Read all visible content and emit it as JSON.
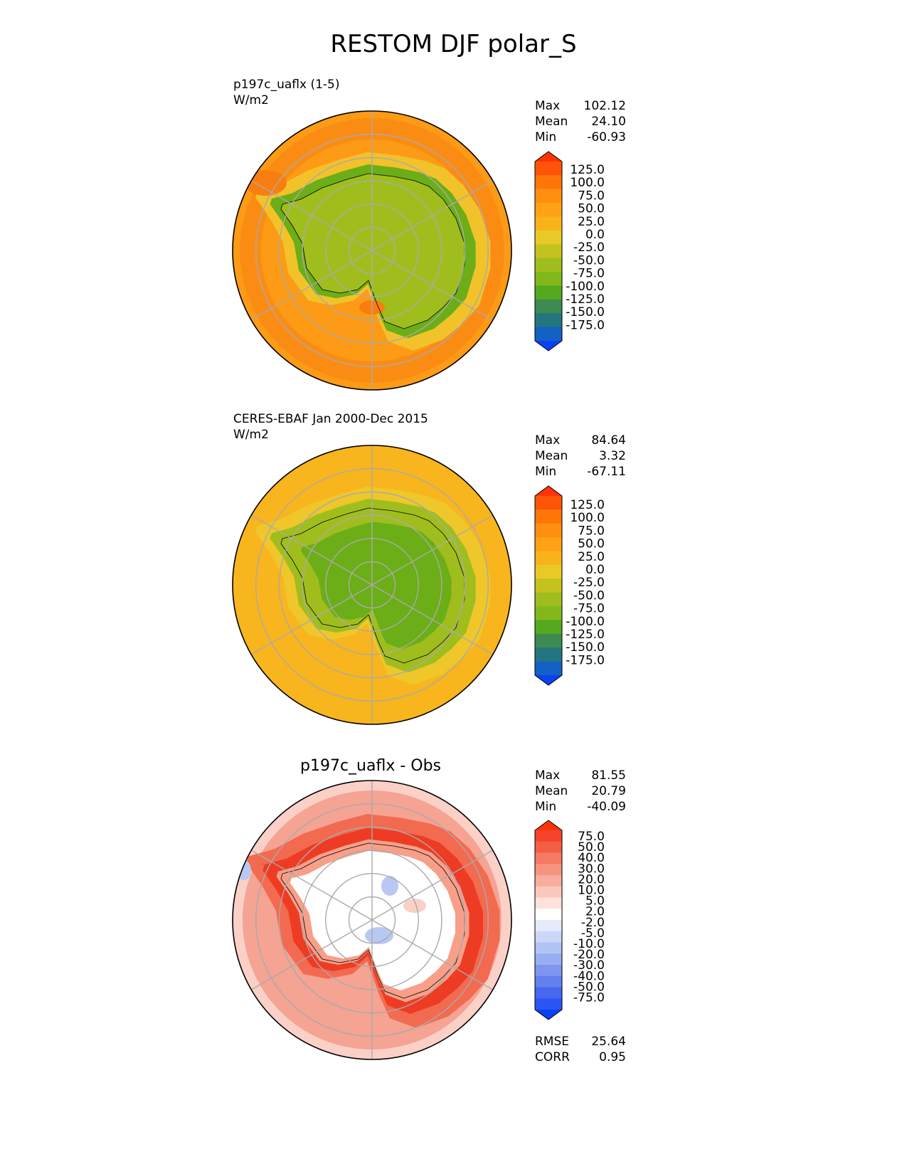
{
  "page_title": "RESTOM DJF polar_S",
  "colors": {
    "ocean_main": "#fd9b16",
    "ocean_main2": "#fa8c14",
    "land_main": "#9fbe1d",
    "land_main2": "#6bae17",
    "obs_ocean": "#f9b51d",
    "obs_ocean2": "#efc72a",
    "diff_bg": "#f5a393",
    "diff_strong": "#ee3b23",
    "diff_white": "#ffffff",
    "diff_blue": "#b8c8f3",
    "grid": "#aaaaaa",
    "coast": "#000000"
  },
  "panels": [
    {
      "title_lines": [
        "p197c_uaflx (1-5)",
        "W/m2"
      ],
      "stats": [
        {
          "label": "Max",
          "value": "102.12"
        },
        {
          "label": "Mean",
          "value": "24.10"
        },
        {
          "label": "Min",
          "value": "-60.93"
        }
      ]
    },
    {
      "title_lines": [
        "CERES-EBAF Jan 2000-Dec 2015",
        "W/m2"
      ],
      "stats": [
        {
          "label": "Max",
          "value": "84.64"
        },
        {
          "label": "Mean",
          "value": "3.32"
        },
        {
          "label": "Min",
          "value": "-67.11"
        }
      ]
    },
    {
      "title": "p197c_uaflx - Obs",
      "stats": [
        {
          "label": "Max",
          "value": "81.55"
        },
        {
          "label": "Mean",
          "value": "20.79"
        },
        {
          "label": "Min",
          "value": "-40.09"
        }
      ],
      "metrics": [
        {
          "label": "RMSE",
          "value": "25.64"
        },
        {
          "label": "CORR",
          "value": "0.95"
        }
      ]
    }
  ],
  "chart_data": [
    {
      "type": "heatmap",
      "projection": "south-polar-stereographic",
      "title": "p197c_uaflx (1-5)",
      "units": "W/m2",
      "grid": true,
      "colorbar": {
        "ticks": [
          "125.0",
          "100.0",
          "75.0",
          "50.0",
          "25.0",
          "0.0",
          "-25.0",
          "-50.0",
          "-75.0",
          "-100.0",
          "-125.0",
          "-150.0",
          "-175.0"
        ],
        "colors": [
          "#ff3308",
          "#ff5408",
          "#ff7508",
          "#ff8f10",
          "#ffa215",
          "#f8b31b",
          "#e9c928",
          "#c4c21f",
          "#9fbe1d",
          "#82b81b",
          "#55a91e",
          "#3d8a52",
          "#24767e",
          "#1361c4",
          "#0b40f4"
        ],
        "extend": "both"
      }
    },
    {
      "type": "heatmap",
      "projection": "south-polar-stereographic",
      "title": "CERES-EBAF Jan 2000-Dec 2015",
      "units": "W/m2",
      "grid": true,
      "colorbar": {
        "ticks": [
          "125.0",
          "100.0",
          "75.0",
          "50.0",
          "25.0",
          "0.0",
          "-25.0",
          "-50.0",
          "-75.0",
          "-100.0",
          "-125.0",
          "-150.0",
          "-175.0"
        ],
        "colors": [
          "#ff3308",
          "#ff5408",
          "#ff7508",
          "#ff8f10",
          "#ffa215",
          "#f8b31b",
          "#e9c928",
          "#c4c21f",
          "#9fbe1d",
          "#82b81b",
          "#55a91e",
          "#3d8a52",
          "#24767e",
          "#1361c4",
          "#0b40f4"
        ],
        "extend": "both"
      }
    },
    {
      "type": "heatmap",
      "projection": "south-polar-stereographic",
      "title": "p197c_uaflx - Obs",
      "grid": true,
      "colorbar": {
        "ticks": [
          "75.0",
          "50.0",
          "40.0",
          "30.0",
          "20.0",
          "10.0",
          "5.0",
          "2.0",
          "-2.0",
          "-5.0",
          "-10.0",
          "-20.0",
          "-30.0",
          "-40.0",
          "-50.0",
          "-75.0"
        ],
        "colors": [
          "#ff3308",
          "#f5432c",
          "#f45e45",
          "#f57a63",
          "#f6947f",
          "#f8ad9d",
          "#fbc8bd",
          "#fde3dc",
          "#ffffff",
          "#e5ebfb",
          "#ccd7f8",
          "#b2c3f5",
          "#98aef2",
          "#7e96ef",
          "#6280ee",
          "#4568ef",
          "#2b54f5",
          "#0b40f4"
        ],
        "extend": "both"
      }
    }
  ]
}
